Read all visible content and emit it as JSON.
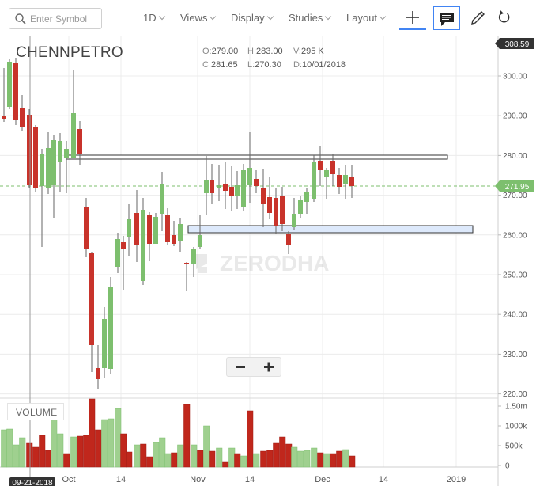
{
  "toolbar": {
    "search_placeholder": "Enter Symbol",
    "interval_label": "1D",
    "views_label": "Views",
    "display_label": "Display",
    "studies_label": "Studies",
    "layout_label": "Layout"
  },
  "header": {
    "symbol": "CHENNPETRO",
    "open_key": "O:",
    "open_val": "279.00",
    "high_key": "H:",
    "high_val": "283.00",
    "volume_key": "V:",
    "volume_val": "295 K",
    "close_key": "C:",
    "close_val": "281.65",
    "low_key": "L:",
    "low_val": "270.30",
    "date_key": "D:",
    "date_val": "10/01/2018"
  },
  "watermark": "ZERODHA",
  "price_axis": {
    "ticks": [
      "300.00",
      "290.00",
      "280.00",
      "270.00",
      "260.00",
      "250.00",
      "240.00",
      "230.00",
      "220.00"
    ],
    "last_price": "308.59",
    "current_price": "271.95"
  },
  "volume_axis": {
    "ticks": [
      "1.50m",
      "1000k",
      "500k",
      "0"
    ]
  },
  "volume_label": "VOLUME",
  "time_axis": {
    "ticks": [
      "Oct",
      "14",
      "Nov",
      "14",
      "Dec",
      "14",
      "2019"
    ],
    "cursor_date": "09-21-2018"
  },
  "colors": {
    "up": "#7dbf6e",
    "down": "#c8332b",
    "accent": "#4184f3"
  }
}
